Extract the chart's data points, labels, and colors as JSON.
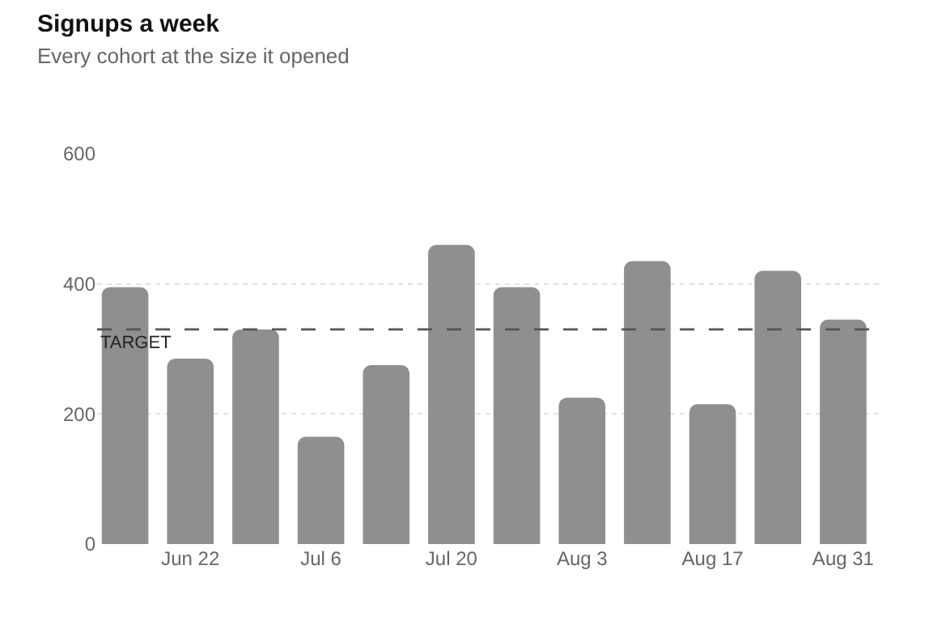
{
  "chart_data": {
    "type": "bar",
    "title": "Signups a week",
    "subtitle": "Every cohort at the size it opened",
    "x": [
      "--06-15",
      "--06-22",
      "--06-29",
      "--07-06",
      "--07-13",
      "--07-20",
      "--07-27",
      "--08-03",
      "--08-10",
      "--08-17",
      "--08-24",
      "--08-31"
    ],
    "values": [
      395,
      285,
      330,
      165,
      275,
      460,
      395,
      225,
      435,
      215,
      420,
      345
    ],
    "color": "#8f8f8f",
    "xlim": [
      "--06-12",
      "--09-04"
    ],
    "xticks": [
      {
        "value": "--06-22",
        "label": "Jun 22"
      },
      {
        "value": "--07-06",
        "label": "Jul 6"
      },
      {
        "value": "--07-20",
        "label": "Jul 20"
      },
      {
        "value": "--08-03",
        "label": "Aug 3"
      },
      {
        "value": "--08-17",
        "label": "Aug 17"
      },
      {
        "value": "--08-31",
        "label": "Aug 31"
      }
    ],
    "ylim": [
      0,
      600
    ],
    "yticks": [
      0,
      200,
      400,
      600
    ],
    "grid": "y",
    "legend": false,
    "ref_lines": [
      {
        "axis": "y",
        "value": 330,
        "label": "TARGET",
        "color": "#555555",
        "line_style": "dashed"
      }
    ]
  }
}
